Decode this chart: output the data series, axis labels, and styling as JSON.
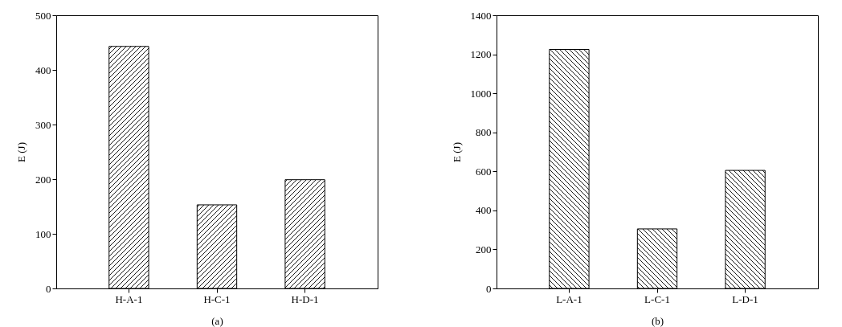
{
  "chart_data": [
    {
      "type": "bar",
      "xlabel": "(a)",
      "ylabel": "E (J)",
      "categories": [
        "H-A-1",
        "H-C-1",
        "H-D-1"
      ],
      "values": [
        443,
        153,
        199
      ],
      "color": "#000000",
      "ylim": [
        0,
        500
      ],
      "yticks": [
        0,
        100,
        200,
        300,
        400,
        500
      ],
      "grid": false
    },
    {
      "type": "bar",
      "xlabel": "(b)",
      "ylabel": "E (J)",
      "categories": [
        "L-A-1",
        "L-C-1",
        "L-D-1"
      ],
      "values": [
        1225,
        305,
        605
      ],
      "color": "#000000",
      "ylim": [
        0,
        1400
      ],
      "yticks": [
        0,
        200,
        400,
        600,
        800,
        1000,
        1200,
        1400
      ],
      "grid": false
    }
  ]
}
